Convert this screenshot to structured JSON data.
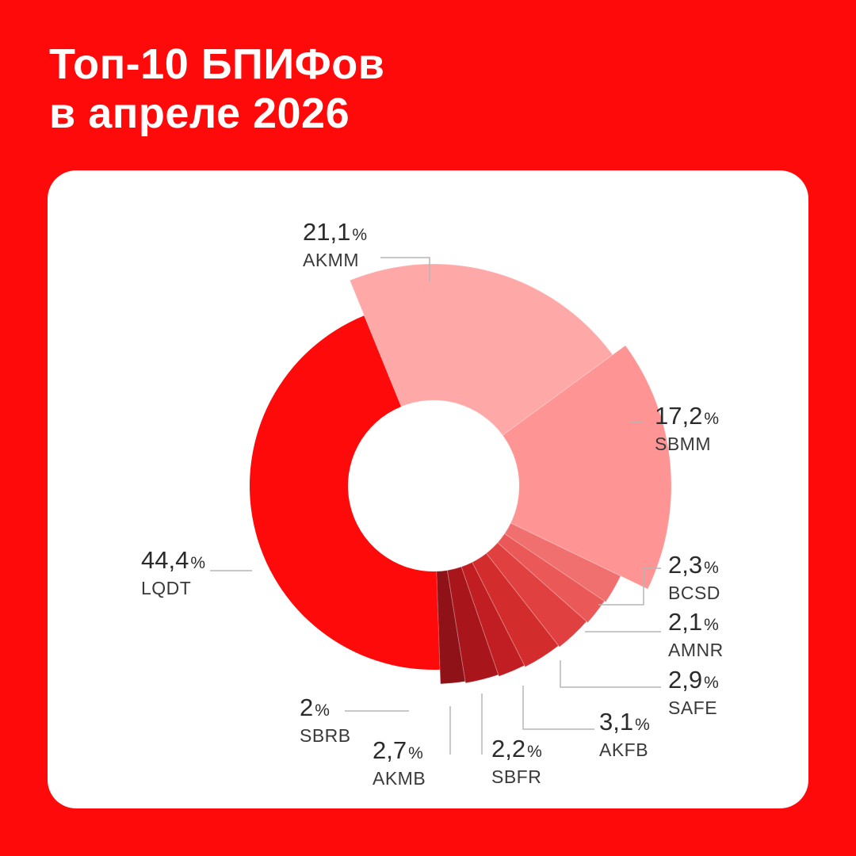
{
  "header": {
    "title_line1": "Топ-10 БПИФов",
    "title_line2": "в апреле 2026"
  },
  "colors": {
    "background": "#ff0a0a",
    "card": "#ffffff",
    "text": "#2b2b2b"
  },
  "chart_data": {
    "type": "pie",
    "variant": "donut",
    "title": "Топ-10 БПИФов в апреле 2026",
    "percent_sign": "%",
    "slices": [
      {
        "name": "LQDT",
        "value": 44.4,
        "label": "44,4",
        "color": "#ff0a0a"
      },
      {
        "name": "AKMM",
        "value": 21.1,
        "label": "21,1",
        "color": "#ffa8a8"
      },
      {
        "name": "SBMM",
        "value": 17.2,
        "label": "17,2",
        "color": "#ff9494"
      },
      {
        "name": "BCSD",
        "value": 2.3,
        "label": "2,3",
        "color": "#f07070"
      },
      {
        "name": "AMNR",
        "value": 2.1,
        "label": "2,1",
        "color": "#ea5858"
      },
      {
        "name": "SAFE",
        "value": 2.9,
        "label": "2,9",
        "color": "#e04040"
      },
      {
        "name": "AKFB",
        "value": 3.1,
        "label": "3,1",
        "color": "#d22c2c"
      },
      {
        "name": "SBFR",
        "value": 2.2,
        "label": "2,2",
        "color": "#c01e22"
      },
      {
        "name": "AKMB",
        "value": 2.7,
        "label": "2,7",
        "color": "#a8161c"
      },
      {
        "name": "SBRB",
        "value": 2.0,
        "label": "2",
        "color": "#8e1218"
      }
    ]
  }
}
